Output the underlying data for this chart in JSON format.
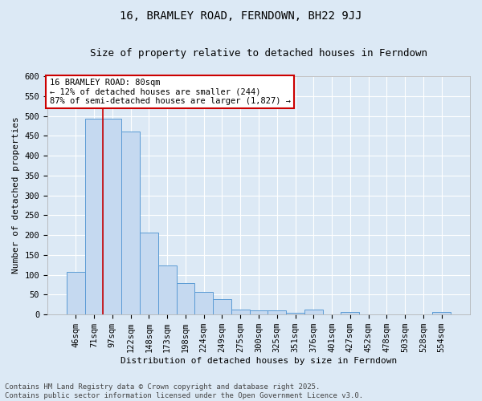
{
  "title_line1": "16, BRAMLEY ROAD, FERNDOWN, BH22 9JJ",
  "title_line2": "Size of property relative to detached houses in Ferndown",
  "xlabel": "Distribution of detached houses by size in Ferndown",
  "ylabel": "Number of detached properties",
  "categories": [
    "46sqm",
    "71sqm",
    "97sqm",
    "122sqm",
    "148sqm",
    "173sqm",
    "198sqm",
    "224sqm",
    "249sqm",
    "275sqm",
    "300sqm",
    "325sqm",
    "351sqm",
    "376sqm",
    "401sqm",
    "427sqm",
    "452sqm",
    "478sqm",
    "503sqm",
    "528sqm",
    "554sqm"
  ],
  "values": [
    107,
    493,
    493,
    460,
    207,
    123,
    80,
    57,
    38,
    13,
    10,
    10,
    4,
    12,
    0,
    6,
    0,
    0,
    0,
    0,
    6
  ],
  "bar_color": "#c5d9f0",
  "bar_edge_color": "#5b9bd5",
  "vline_color": "#cc0000",
  "vline_x_pos": 1.5,
  "annotation_text": "16 BRAMLEY ROAD: 80sqm\n← 12% of detached houses are smaller (244)\n87% of semi-detached houses are larger (1,827) →",
  "annotation_box_facecolor": "#ffffff",
  "annotation_box_edgecolor": "#cc0000",
  "ylim_max": 600,
  "yticks": [
    0,
    50,
    100,
    150,
    200,
    250,
    300,
    350,
    400,
    450,
    500,
    550,
    600
  ],
  "background_color": "#dce9f5",
  "footer_text": "Contains HM Land Registry data © Crown copyright and database right 2025.\nContains public sector information licensed under the Open Government Licence v3.0.",
  "title_fontsize": 10,
  "subtitle_fontsize": 9,
  "axis_label_fontsize": 8,
  "tick_fontsize": 7.5,
  "annotation_fontsize": 7.5,
  "footer_fontsize": 6.5
}
